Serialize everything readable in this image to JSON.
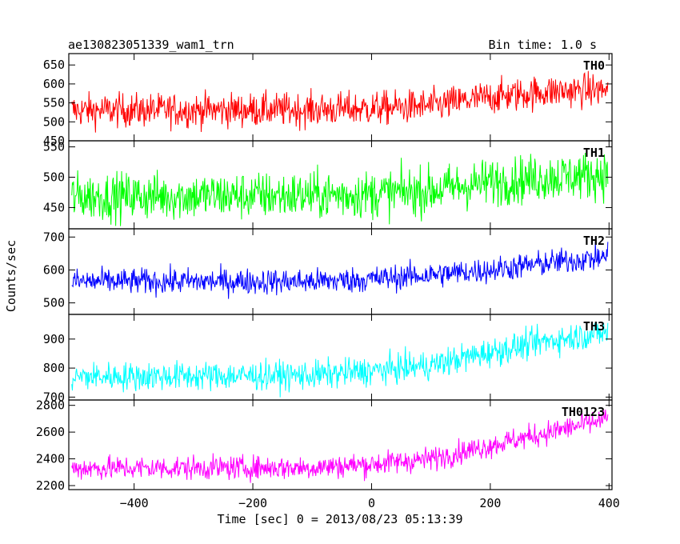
{
  "header": {
    "title": "ae130823051339_wam1_trn",
    "bin_time": "Bin time: 1.0 s"
  },
  "chart_data": {
    "type": "line",
    "xlabel": "Time [sec] 0 = 2013/08/23 05:13:39",
    "ylabel": "Counts/sec",
    "xlim": [
      -510,
      405
    ],
    "xticks": [
      -400,
      -200,
      0,
      200,
      400
    ],
    "x_step": 1.0,
    "grid": false,
    "panels": [
      {
        "name": "TH0",
        "color": "#ff0000",
        "ylim": [
          450,
          680
        ],
        "yticks": [
          450,
          500,
          550,
          600,
          650
        ],
        "trend": [
          [
            -505,
            530
          ],
          [
            -100,
            532
          ],
          [
            0,
            535
          ],
          [
            100,
            542
          ],
          [
            200,
            565
          ],
          [
            300,
            580
          ],
          [
            400,
            585
          ]
        ],
        "noise": 25
      },
      {
        "name": "TH1",
        "color": "#00ff00",
        "ylim": [
          415,
          560
        ],
        "yticks": [
          450,
          500,
          550
        ],
        "trend": [
          [
            -505,
            468
          ],
          [
            -100,
            470
          ],
          [
            0,
            472
          ],
          [
            100,
            478
          ],
          [
            200,
            492
          ],
          [
            300,
            500
          ],
          [
            400,
            505
          ]
        ],
        "noise": 22
      },
      {
        "name": "TH2",
        "color": "#0000ff",
        "ylim": [
          465,
          725
        ],
        "yticks": [
          500,
          600,
          700
        ],
        "trend": [
          [
            -505,
            565
          ],
          [
            -100,
            565
          ],
          [
            0,
            572
          ],
          [
            100,
            585
          ],
          [
            200,
            600
          ],
          [
            300,
            622
          ],
          [
            400,
            640
          ]
        ],
        "noise": 22
      },
      {
        "name": "TH3",
        "color": "#00ffff",
        "ylim": [
          690,
          985
        ],
        "yticks": [
          700,
          800,
          900
        ],
        "trend": [
          [
            -505,
            770
          ],
          [
            -100,
            775
          ],
          [
            0,
            790
          ],
          [
            100,
            810
          ],
          [
            200,
            855
          ],
          [
            300,
            895
          ],
          [
            400,
            925
          ]
        ],
        "noise": 28
      },
      {
        "name": "TH0123",
        "color": "#ff00ff",
        "ylim": [
          2170,
          2840
        ],
        "yticks": [
          2200,
          2400,
          2600,
          2800
        ],
        "trend": [
          [
            -505,
            2330
          ],
          [
            -100,
            2335
          ],
          [
            0,
            2360
          ],
          [
            100,
            2400
          ],
          [
            200,
            2500
          ],
          [
            300,
            2600
          ],
          [
            400,
            2700
          ]
        ],
        "noise": 50
      }
    ]
  }
}
